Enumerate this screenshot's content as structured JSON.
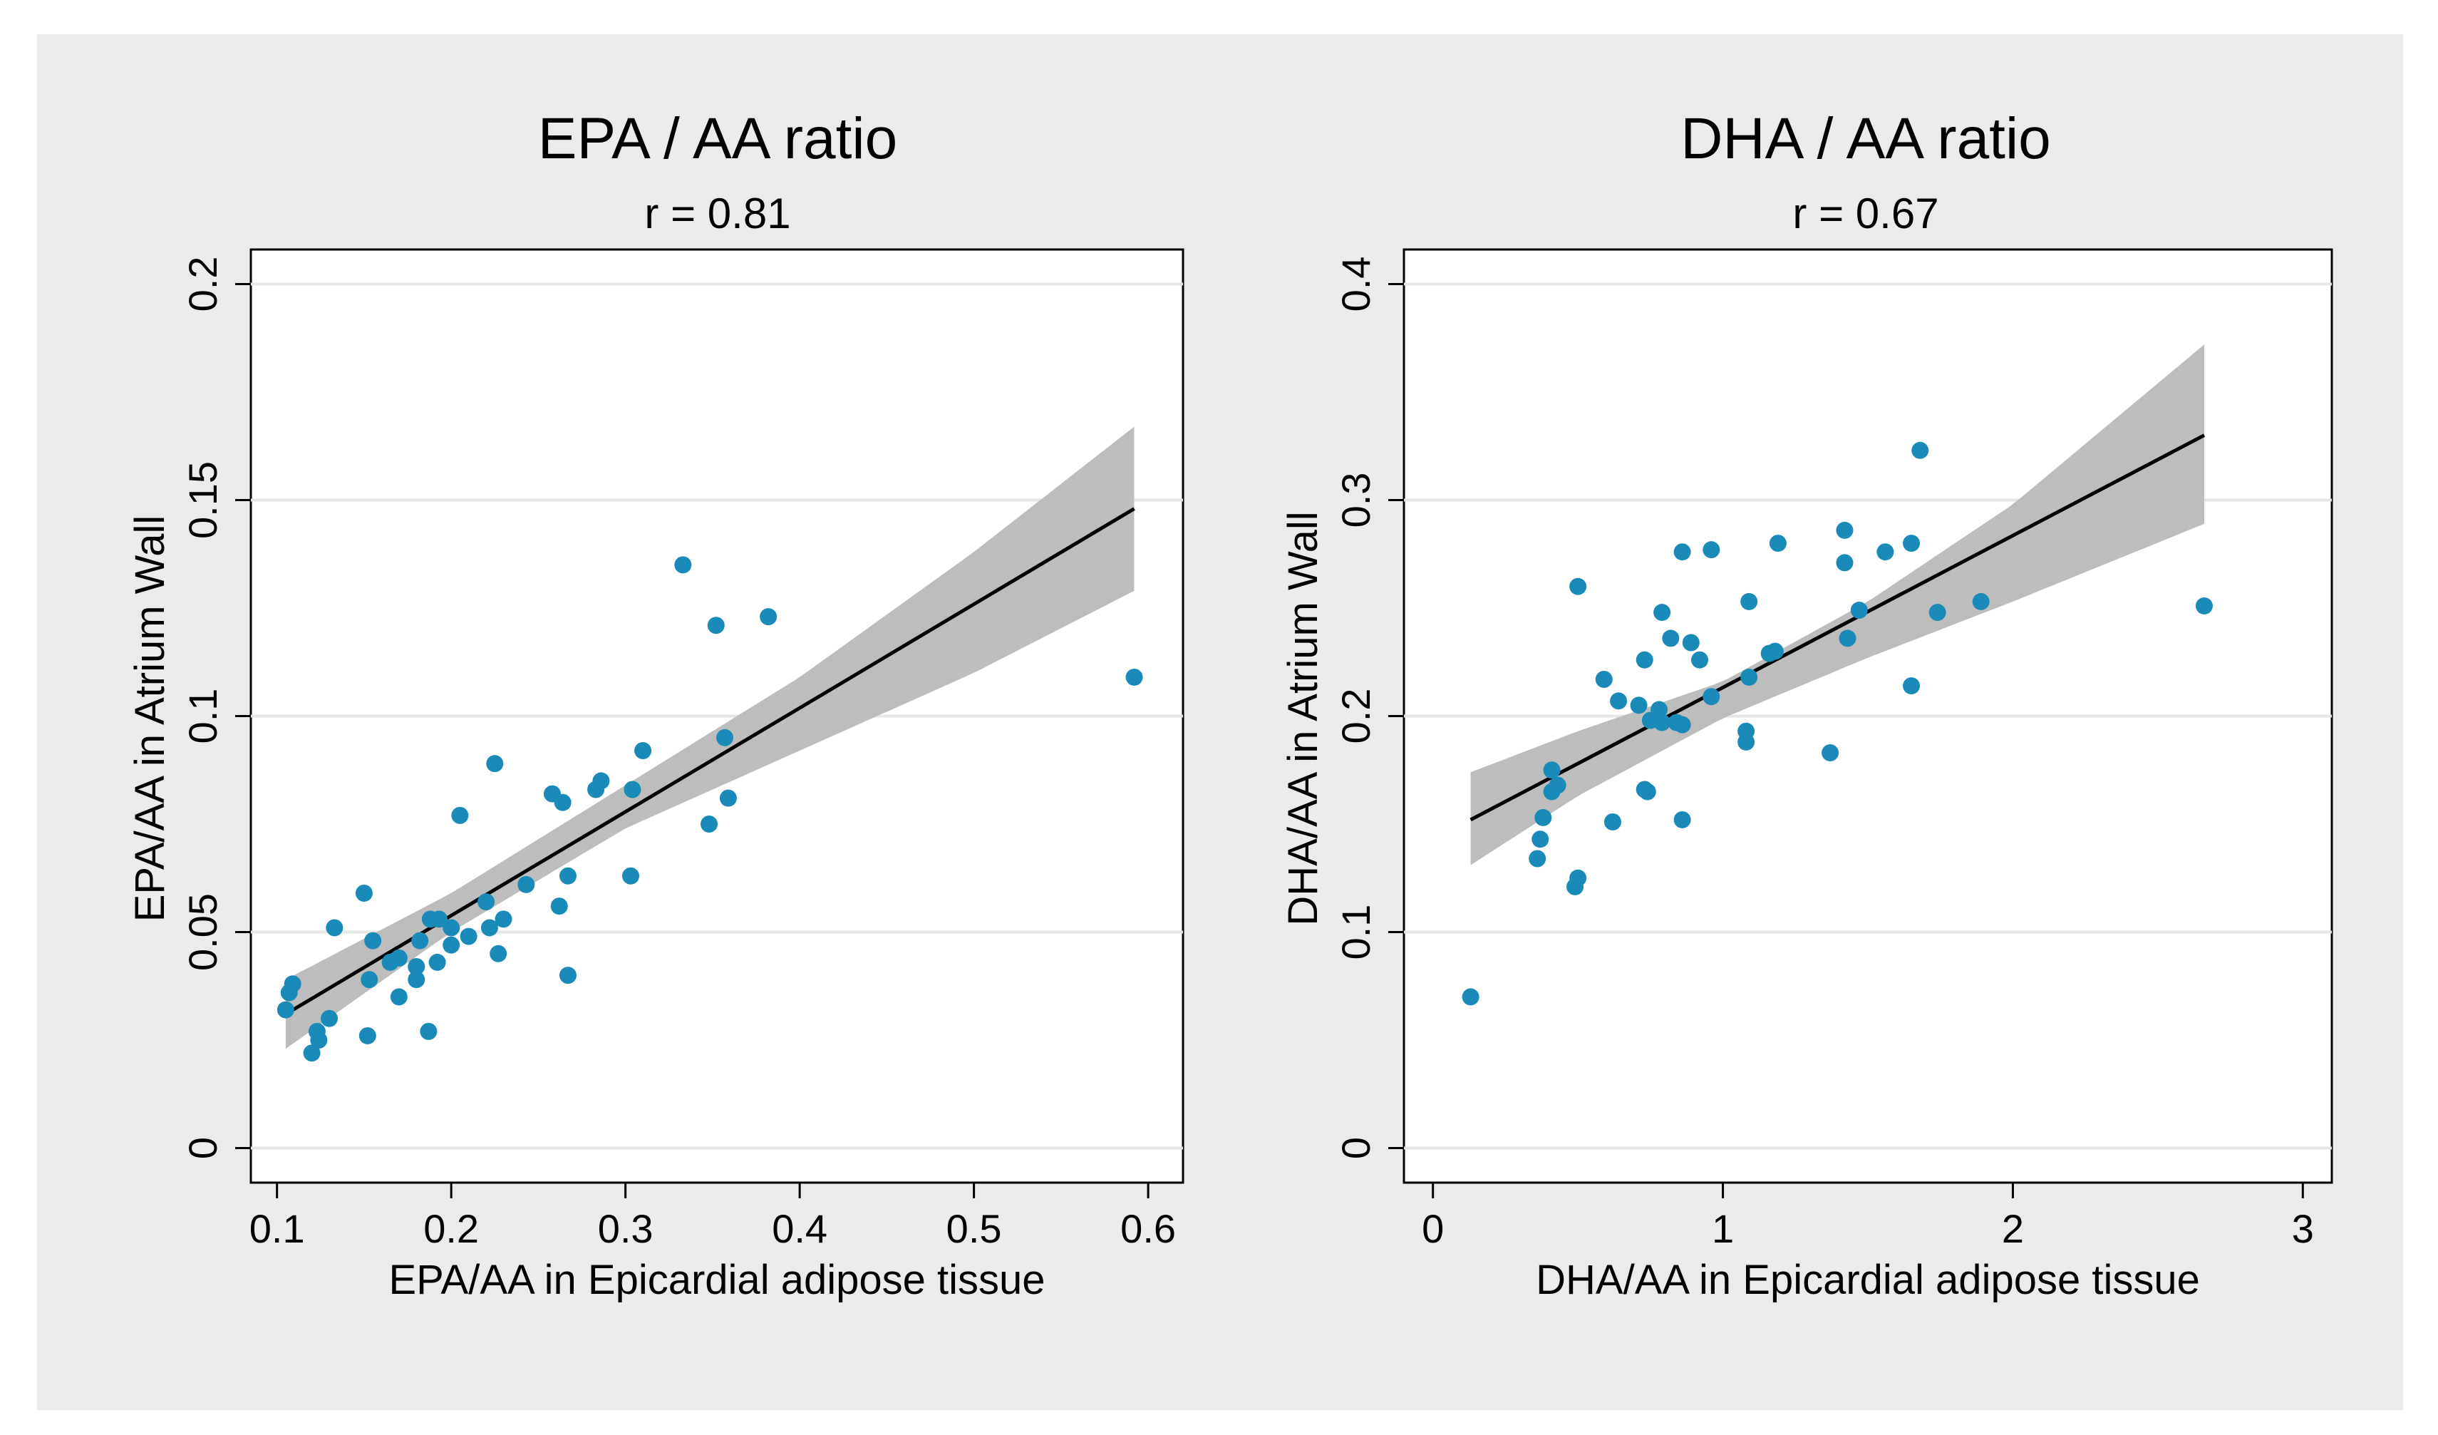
{
  "chart_data": [
    {
      "type": "scatter",
      "title": "EPA / AA ratio",
      "subtitle": "r = 0.81",
      "xlabel": "EPA/AA in Epicardial adipose tissue",
      "ylabel": "EPA/AA in Atrium Wall",
      "xlim": [
        0.085,
        0.62
      ],
      "ylim": [
        -0.008,
        0.208
      ],
      "xticks": [
        0.1,
        0.2,
        0.3,
        0.4,
        0.5,
        0.6
      ],
      "xtick_labels": [
        "0.1",
        "0.2",
        "0.3",
        "0.4",
        "0.5",
        "0.6"
      ],
      "yticks": [
        0,
        0.05,
        0.1,
        0.15,
        0.2
      ],
      "ytick_labels": [
        "0",
        "0.05",
        "0.1",
        "0.15",
        "0.2"
      ],
      "grid": true,
      "points": [
        [
          0.105,
          0.032
        ],
        [
          0.107,
          0.036
        ],
        [
          0.109,
          0.038
        ],
        [
          0.12,
          0.022
        ],
        [
          0.123,
          0.027
        ],
        [
          0.124,
          0.025
        ],
        [
          0.13,
          0.03
        ],
        [
          0.133,
          0.051
        ],
        [
          0.15,
          0.059
        ],
        [
          0.152,
          0.026
        ],
        [
          0.153,
          0.039
        ],
        [
          0.155,
          0.048
        ],
        [
          0.165,
          0.043
        ],
        [
          0.17,
          0.044
        ],
        [
          0.17,
          0.035
        ],
        [
          0.18,
          0.042
        ],
        [
          0.18,
          0.039
        ],
        [
          0.182,
          0.048
        ],
        [
          0.187,
          0.027
        ],
        [
          0.188,
          0.053
        ],
        [
          0.192,
          0.043
        ],
        [
          0.193,
          0.053
        ],
        [
          0.2,
          0.047
        ],
        [
          0.2,
          0.051
        ],
        [
          0.205,
          0.077
        ],
        [
          0.21,
          0.049
        ],
        [
          0.22,
          0.057
        ],
        [
          0.222,
          0.051
        ],
        [
          0.225,
          0.089
        ],
        [
          0.227,
          0.045
        ],
        [
          0.23,
          0.053
        ],
        [
          0.243,
          0.061
        ],
        [
          0.258,
          0.082
        ],
        [
          0.262,
          0.056
        ],
        [
          0.264,
          0.08
        ],
        [
          0.267,
          0.04
        ],
        [
          0.267,
          0.063
        ],
        [
          0.283,
          0.083
        ],
        [
          0.286,
          0.085
        ],
        [
          0.303,
          0.063
        ],
        [
          0.304,
          0.083
        ],
        [
          0.31,
          0.092
        ],
        [
          0.333,
          0.135
        ],
        [
          0.348,
          0.075
        ],
        [
          0.352,
          0.121
        ],
        [
          0.357,
          0.095
        ],
        [
          0.359,
          0.081
        ],
        [
          0.382,
          0.123
        ],
        [
          0.592,
          0.109
        ]
      ],
      "fit_line": {
        "x": [
          0.105,
          0.592
        ],
        "y": [
          0.031,
          0.148
        ]
      },
      "ci_band": {
        "x": [
          0.105,
          0.2,
          0.3,
          0.4,
          0.5,
          0.592
        ],
        "lower": [
          0.023,
          0.05,
          0.074,
          0.092,
          0.11,
          0.129
        ],
        "upper": [
          0.039,
          0.059,
          0.084,
          0.109,
          0.138,
          0.167
        ]
      }
    },
    {
      "type": "scatter",
      "title": "DHA / AA ratio",
      "subtitle": "r = 0.67",
      "xlabel": "DHA/AA in Epicardial adipose tissue",
      "ylabel": "DHA/AA in Atrium Wall",
      "xlim": [
        -0.1,
        3.1
      ],
      "ylim": [
        -0.016,
        0.416
      ],
      "xticks": [
        0,
        1,
        2,
        3
      ],
      "xtick_labels": [
        "0",
        "1",
        "2",
        "3"
      ],
      "yticks": [
        0,
        0.1,
        0.2,
        0.3,
        0.4
      ],
      "ytick_labels": [
        "0",
        "0.1",
        "0.2",
        "0.3",
        "0.4"
      ],
      "grid": true,
      "points": [
        [
          0.13,
          0.07
        ],
        [
          0.36,
          0.134
        ],
        [
          0.37,
          0.143
        ],
        [
          0.38,
          0.153
        ],
        [
          0.41,
          0.175
        ],
        [
          0.41,
          0.165
        ],
        [
          0.43,
          0.168
        ],
        [
          0.49,
          0.121
        ],
        [
          0.5,
          0.125
        ],
        [
          0.5,
          0.26
        ],
        [
          0.59,
          0.217
        ],
        [
          0.62,
          0.151
        ],
        [
          0.64,
          0.207
        ],
        [
          0.71,
          0.205
        ],
        [
          0.73,
          0.226
        ],
        [
          0.73,
          0.166
        ],
        [
          0.74,
          0.165
        ],
        [
          0.75,
          0.198
        ],
        [
          0.78,
          0.203
        ],
        [
          0.79,
          0.197
        ],
        [
          0.79,
          0.248
        ],
        [
          0.82,
          0.236
        ],
        [
          0.84,
          0.197
        ],
        [
          0.86,
          0.152
        ],
        [
          0.86,
          0.196
        ],
        [
          0.86,
          0.276
        ],
        [
          0.89,
          0.234
        ],
        [
          0.92,
          0.226
        ],
        [
          0.96,
          0.277
        ],
        [
          0.96,
          0.209
        ],
        [
          1.08,
          0.188
        ],
        [
          1.08,
          0.193
        ],
        [
          1.09,
          0.253
        ],
        [
          1.09,
          0.218
        ],
        [
          1.16,
          0.229
        ],
        [
          1.18,
          0.23
        ],
        [
          1.19,
          0.28
        ],
        [
          1.37,
          0.183
        ],
        [
          1.42,
          0.286
        ],
        [
          1.42,
          0.271
        ],
        [
          1.43,
          0.236
        ],
        [
          1.47,
          0.249
        ],
        [
          1.56,
          0.276
        ],
        [
          1.65,
          0.214
        ],
        [
          1.65,
          0.28
        ],
        [
          1.68,
          0.323
        ],
        [
          1.74,
          0.248
        ],
        [
          1.89,
          0.253
        ],
        [
          2.66,
          0.251
        ]
      ],
      "fit_line": {
        "x": [
          0.13,
          2.66
        ],
        "y": [
          0.152,
          0.33
        ]
      },
      "ci_band": {
        "x": [
          0.13,
          0.5,
          1.0,
          1.5,
          2.0,
          2.66
        ],
        "lower": [
          0.131,
          0.163,
          0.199,
          0.227,
          0.253,
          0.289
        ],
        "upper": [
          0.174,
          0.193,
          0.216,
          0.253,
          0.298,
          0.372
        ]
      }
    }
  ],
  "colors": {
    "outer_background": "#ebebeb",
    "plot_background": "#ffffff",
    "marker": "#1a8ab8",
    "ci_band": "#bdbdbd",
    "fit_line": "#000000",
    "grid": "#e6e6e6"
  }
}
